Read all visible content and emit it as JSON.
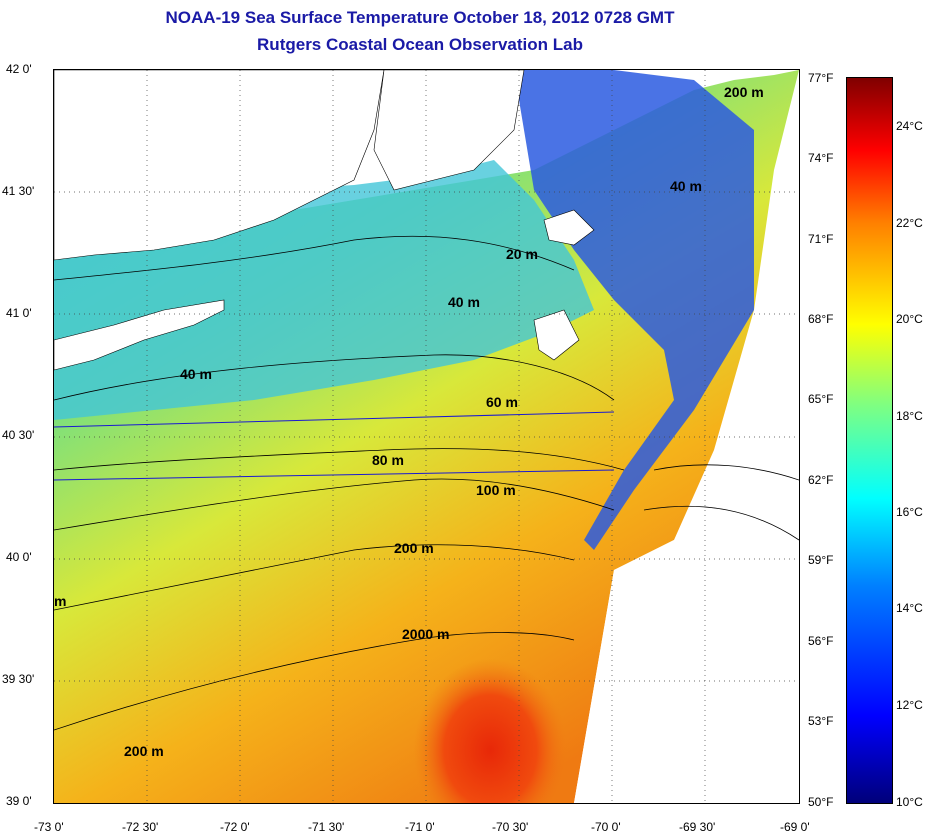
{
  "title": "NOAA-19 Sea Surface Temperature October 18, 2012 0728 GMT",
  "subtitle": "Rutgers Coastal Ocean Observation Lab",
  "lat_labels": [
    "42 0'",
    "41 30'",
    "41 0'",
    "40 30'",
    "40 0'",
    "39 30'",
    "39 0'"
  ],
  "lon_labels": [
    "-73 0'",
    "-72 30'",
    "-72 0'",
    "-71 30'",
    "-71 0'",
    "-70 30'",
    "-70 0'",
    "-69 30'",
    "-69 0'"
  ],
  "fahrenheit_labels": [
    "77°F",
    "74°F",
    "71°F",
    "68°F",
    "65°F",
    "62°F",
    "59°F",
    "56°F",
    "53°F",
    "50°F"
  ],
  "celsius_labels": [
    "24°C",
    "22°C",
    "20°C",
    "18°C",
    "16°C",
    "14°C",
    "12°C",
    "10°C"
  ],
  "contour_labels": [
    "200 m",
    "40 m",
    "20 m",
    "40 m",
    "40 m",
    "60 m",
    "80 m",
    "100 m",
    "200 m",
    "m",
    "2000 m",
    "200 m"
  ],
  "colors": {
    "title": "#1a1aa6",
    "land": "#ffffff",
    "contour": "#000000"
  }
}
